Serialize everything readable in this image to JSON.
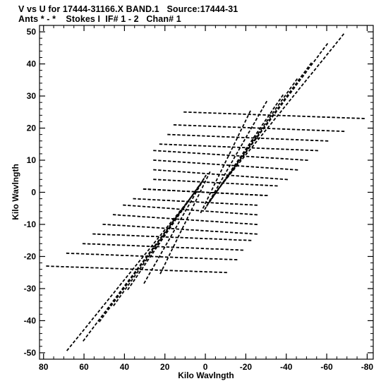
{
  "chart_data": {
    "type": "scatter",
    "title": "V vs U for 17444-31166.X BAND.1   Source:17444-31",
    "subtitle": "Ants * - *    Stokes I  IF# 1 - 2   Chan# 1",
    "xlabel": "Kilo Wavlngth",
    "ylabel": "Kilo Wavlngth",
    "xlim": [
      82,
      -83
    ],
    "ylim": [
      -52,
      52
    ],
    "x_reversed": true,
    "xticks": [
      80,
      60,
      40,
      20,
      0,
      -20,
      -40,
      -60,
      -80
    ],
    "xtick_labels": [
      "80",
      "60",
      "40",
      "20",
      "0",
      "-20",
      "-40",
      "-60",
      "-80"
    ],
    "yticks": [
      50,
      40,
      30,
      20,
      10,
      0,
      -10,
      -20,
      -30,
      -40,
      -50
    ],
    "ytick_labels": [
      "50",
      "40",
      "30",
      "20",
      "10",
      "0",
      "-10",
      "-20",
      "-30",
      "-40",
      "-50"
    ],
    "grid": false,
    "marker_color": "#000000",
    "tracks": [
      {
        "p0": [
          -68,
          49
        ],
        "p1": [
          -5,
          0
        ]
      },
      {
        "p0": [
          -60,
          46
        ],
        "p1": [
          -4,
          -1
        ]
      },
      {
        "p0": [
          -52,
          40
        ],
        "p1": [
          -3,
          -2
        ]
      },
      {
        "p0": [
          -45,
          35
        ],
        "p1": [
          -2,
          -3
        ]
      },
      {
        "p0": [
          -38,
          30
        ],
        "p1": [
          -1,
          -4
        ]
      },
      {
        "p0": [
          -30,
          28
        ],
        "p1": [
          0,
          -5
        ]
      },
      {
        "p0": [
          -22,
          25
        ],
        "p1": [
          2,
          -6
        ]
      },
      {
        "p0": [
          68,
          -49
        ],
        "p1": [
          5,
          0
        ]
      },
      {
        "p0": [
          60,
          -46
        ],
        "p1": [
          4,
          1
        ]
      },
      {
        "p0": [
          52,
          -40
        ],
        "p1": [
          3,
          2
        ]
      },
      {
        "p0": [
          45,
          -35
        ],
        "p1": [
          2,
          3
        ]
      },
      {
        "p0": [
          38,
          -30
        ],
        "p1": [
          1,
          4
        ]
      },
      {
        "p0": [
          30,
          -28
        ],
        "p1": [
          0,
          5
        ]
      },
      {
        "p0": [
          22,
          -25
        ],
        "p1": [
          -2,
          6
        ]
      },
      {
        "p0": [
          10,
          25
        ],
        "p1": [
          -78,
          23
        ]
      },
      {
        "p0": [
          15,
          21
        ],
        "p1": [
          -68,
          19
        ]
      },
      {
        "p0": [
          18,
          18
        ],
        "p1": [
          -60,
          16
        ]
      },
      {
        "p0": [
          22,
          15
        ],
        "p1": [
          -55,
          13
        ]
      },
      {
        "p0": [
          25,
          13
        ],
        "p1": [
          -50,
          10
        ]
      },
      {
        "p0": [
          25,
          10
        ],
        "p1": [
          -45,
          7
        ]
      },
      {
        "p0": [
          25,
          7
        ],
        "p1": [
          -40,
          4
        ]
      },
      {
        "p0": [
          25,
          4
        ],
        "p1": [
          -35,
          2
        ]
      },
      {
        "p0": [
          30,
          1
        ],
        "p1": [
          -30,
          -1
        ]
      },
      {
        "p0": [
          -10,
          -25
        ],
        "p1": [
          78,
          -23
        ]
      },
      {
        "p0": [
          -15,
          -21
        ],
        "p1": [
          68,
          -19
        ]
      },
      {
        "p0": [
          -18,
          -18
        ],
        "p1": [
          60,
          -16
        ]
      },
      {
        "p0": [
          -22,
          -15
        ],
        "p1": [
          55,
          -13
        ]
      },
      {
        "p0": [
          -25,
          -13
        ],
        "p1": [
          50,
          -10
        ]
      },
      {
        "p0": [
          -25,
          -10
        ],
        "p1": [
          45,
          -7
        ]
      },
      {
        "p0": [
          -25,
          -7
        ],
        "p1": [
          40,
          -4
        ]
      },
      {
        "p0": [
          -25,
          -4
        ],
        "p1": [
          35,
          -2
        ]
      },
      {
        "p0": [
          -30,
          -1
        ],
        "p1": [
          30,
          1
        ]
      }
    ]
  }
}
